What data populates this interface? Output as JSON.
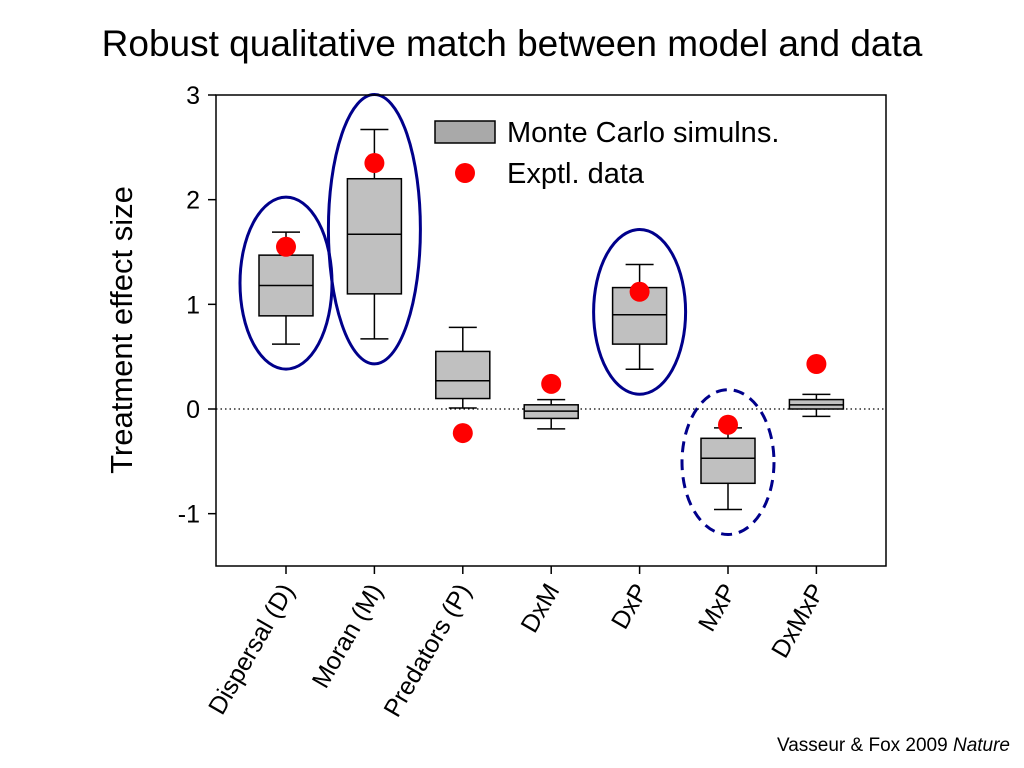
{
  "title": "Robust qualitative match between model and data",
  "citation": {
    "text": "Vasseur & Fox 2009",
    "journal": "Nature"
  },
  "colors": {
    "box_fill": "#c0c0c0",
    "data_point": "#ff0000",
    "highlight_ellipse": "#00008b",
    "axis": "#000000"
  },
  "chart_data": {
    "type": "box",
    "ylabel": "Treatment effect size",
    "xlabel": "",
    "ylim": [
      -1.5,
      3
    ],
    "yticks": [
      -1,
      0,
      1,
      2,
      3
    ],
    "categories": [
      "Dispersal (D)",
      "Moran (M)",
      "Predators (P)",
      "DxM",
      "DxP",
      "MxP",
      "DxMxP"
    ],
    "series": [
      {
        "name": "Monte Carlo simulns.",
        "kind": "box",
        "boxes": [
          {
            "whisker_low": 0.62,
            "q1": 0.89,
            "median": 1.18,
            "q3": 1.47,
            "whisker_high": 1.69
          },
          {
            "whisker_low": 0.67,
            "q1": 1.1,
            "median": 1.67,
            "q3": 2.2,
            "whisker_high": 2.67
          },
          {
            "whisker_low": 0.01,
            "q1": 0.1,
            "median": 0.27,
            "q3": 0.55,
            "whisker_high": 0.78
          },
          {
            "whisker_low": -0.19,
            "q1": -0.09,
            "median": -0.02,
            "q3": 0.04,
            "whisker_high": 0.09
          },
          {
            "whisker_low": 0.38,
            "q1": 0.62,
            "median": 0.9,
            "q3": 1.16,
            "whisker_high": 1.38
          },
          {
            "whisker_low": -0.96,
            "q1": -0.71,
            "median": -0.47,
            "q3": -0.28,
            "whisker_high": -0.18
          },
          {
            "whisker_low": -0.07,
            "q1": 0.0,
            "median": 0.04,
            "q3": 0.09,
            "whisker_high": 0.14
          }
        ]
      },
      {
        "name": "Exptl. data",
        "kind": "point",
        "values": [
          1.55,
          2.35,
          -0.23,
          0.24,
          1.12,
          -0.15,
          0.43
        ]
      }
    ],
    "reference_line": {
      "y": 0,
      "style": "dotted"
    },
    "highlighted_categories": [
      {
        "category": "Dispersal (D)",
        "style": "solid"
      },
      {
        "category": "Moran (M)",
        "style": "solid"
      },
      {
        "category": "DxP",
        "style": "solid"
      },
      {
        "category": "MxP",
        "style": "dashed"
      }
    ],
    "legend_position": "top-right",
    "grid": false
  }
}
